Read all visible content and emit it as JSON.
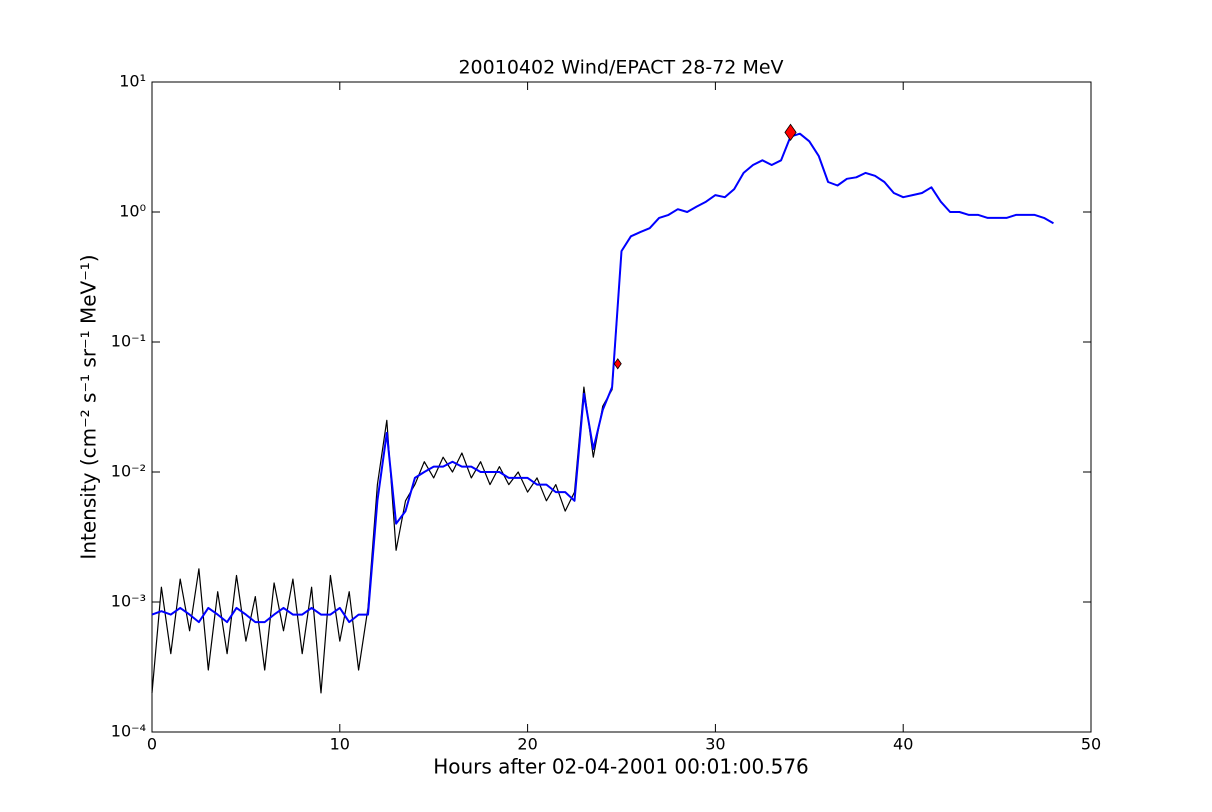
{
  "chart_data": {
    "type": "line",
    "title": "20010402 Wind/EPACT 28-72 MeV",
    "x_label": "Hours after 02-04-2001 00:01:00.576",
    "y_label": "Intensity (cm⁻² s⁻¹ sr⁻¹ MeV⁻¹)",
    "y_scale": "log",
    "xlim": [
      0,
      50
    ],
    "xticks": [
      0,
      10,
      20,
      30,
      40,
      50
    ],
    "ylim": [
      0.0001,
      10
    ],
    "yticks": [
      {
        "value": 0.0001,
        "label": "10⁻⁴"
      },
      {
        "value": 0.001,
        "label": "10⁻³"
      },
      {
        "value": 0.01,
        "label": "10⁻²"
      },
      {
        "value": 0.1,
        "label": "10⁻¹"
      },
      {
        "value": 1,
        "label": "10⁰"
      },
      {
        "value": 10,
        "label": "10¹"
      }
    ],
    "x": [
      0,
      0.5,
      1,
      1.5,
      2,
      2.5,
      3,
      3.5,
      4,
      4.5,
      5,
      5.5,
      6,
      6.5,
      7,
      7.5,
      8,
      8.5,
      9,
      9.5,
      10,
      10.5,
      11,
      11.5,
      12,
      12.5,
      13,
      13.5,
      14,
      14.5,
      15,
      15.5,
      16,
      16.5,
      17,
      17.5,
      18,
      18.5,
      19,
      19.5,
      20,
      20.5,
      21,
      21.5,
      22,
      22.5,
      23,
      23.5,
      24,
      24.5,
      25,
      25.5,
      26,
      26.5,
      27,
      27.5,
      28,
      28.5,
      29,
      29.5,
      30,
      30.5,
      31,
      31.5,
      32,
      32.5,
      33,
      33.5,
      34,
      34.5,
      35,
      35.5,
      36,
      36.5,
      37,
      37.5,
      38,
      38.5,
      39,
      39.5,
      40,
      40.5,
      41,
      41.5,
      42,
      42.5,
      43,
      43.5,
      44,
      44.5,
      45,
      45.5,
      46,
      46.5,
      47,
      47.5,
      48
    ],
    "series": [
      {
        "color": "#000000",
        "values": [
          0.0002,
          0.0013,
          0.0004,
          0.0015,
          0.0006,
          0.0018,
          0.0003,
          0.0012,
          0.0004,
          0.0016,
          0.0005,
          0.0011,
          0.0003,
          0.0014,
          0.0006,
          0.0015,
          0.0004,
          0.0013,
          0.0002,
          0.0016,
          0.0005,
          0.0012,
          0.0003,
          0.0009,
          0.008,
          0.025,
          0.0025,
          0.006,
          0.008,
          0.012,
          0.009,
          0.013,
          0.01,
          0.014,
          0.009,
          0.012,
          0.008,
          0.011,
          0.008,
          0.01,
          0.007,
          0.009,
          0.006,
          0.008,
          0.005,
          0.007,
          0.045,
          0.013,
          0.032,
          0.043,
          0.5,
          0.65,
          0.7,
          0.75,
          0.9,
          0.95,
          1.05,
          1.0,
          1.1,
          1.2,
          1.35,
          1.3,
          1.5,
          2.0,
          2.3,
          2.5,
          2.3,
          2.5,
          3.8,
          4.0,
          3.5,
          2.7,
          1.7,
          1.6,
          1.8,
          1.85,
          2.0,
          1.9,
          1.7,
          1.4,
          1.3,
          1.35,
          1.4,
          1.55,
          1.2,
          1.0,
          1.0,
          0.95,
          0.95,
          0.9,
          0.9,
          0.9,
          0.95,
          0.95,
          0.95,
          0.9,
          0.82
        ]
      },
      {
        "color": "#0000ff",
        "values": [
          0.0008,
          0.00085,
          0.0008,
          0.0009,
          0.0008,
          0.0007,
          0.0009,
          0.0008,
          0.0007,
          0.0009,
          0.0008,
          0.0007,
          0.0007,
          0.0008,
          0.0009,
          0.0008,
          0.0008,
          0.0009,
          0.0008,
          0.0008,
          0.0009,
          0.0007,
          0.0008,
          0.0008,
          0.006,
          0.02,
          0.004,
          0.005,
          0.009,
          0.01,
          0.011,
          0.011,
          0.012,
          0.011,
          0.011,
          0.01,
          0.01,
          0.01,
          0.009,
          0.009,
          0.009,
          0.008,
          0.008,
          0.007,
          0.007,
          0.006,
          0.04,
          0.015,
          0.03,
          0.045,
          0.5,
          0.65,
          0.7,
          0.75,
          0.9,
          0.95,
          1.05,
          1.0,
          1.1,
          1.2,
          1.35,
          1.3,
          1.5,
          2.0,
          2.3,
          2.5,
          2.3,
          2.5,
          3.8,
          4.0,
          3.5,
          2.7,
          1.7,
          1.6,
          1.8,
          1.85,
          2.0,
          1.9,
          1.7,
          1.4,
          1.3,
          1.35,
          1.4,
          1.55,
          1.2,
          1.0,
          1.0,
          0.95,
          0.95,
          0.9,
          0.9,
          0.9,
          0.95,
          0.95,
          0.95,
          0.9,
          0.82
        ]
      }
    ],
    "markers": {
      "color": "#ff0000",
      "x": [
        24.8,
        34
      ],
      "y": [
        0.068,
        4.1
      ]
    }
  }
}
